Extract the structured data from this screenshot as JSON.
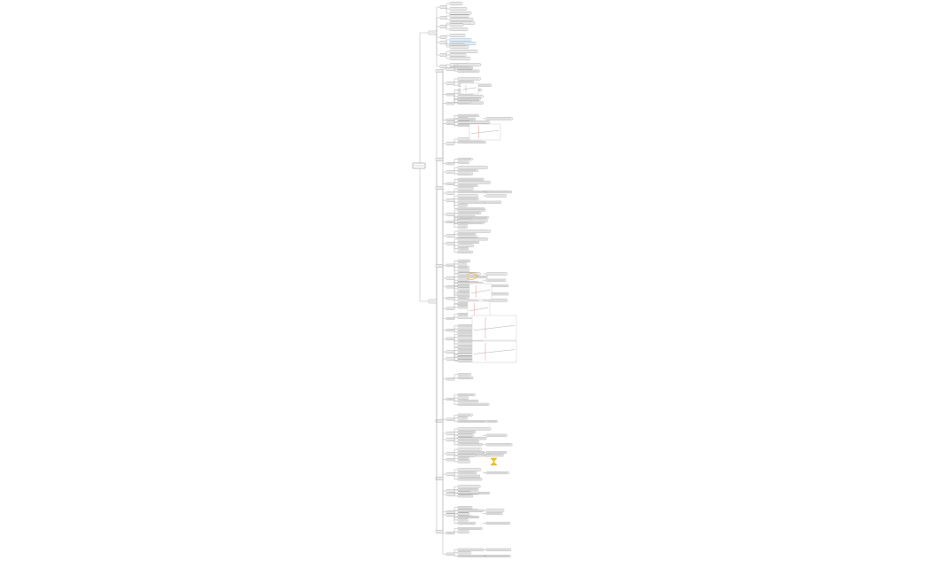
{
  "diagram": {
    "type": "mind-map",
    "orientation": "left-to-right",
    "colors": {
      "line": "#b8b8b8",
      "node_border": "#8a8a8a",
      "root_border": "#555555",
      "highlight": "#5b9bd5",
      "callout": "#f5b041",
      "icon": "#f1c40f"
    }
  }
}
